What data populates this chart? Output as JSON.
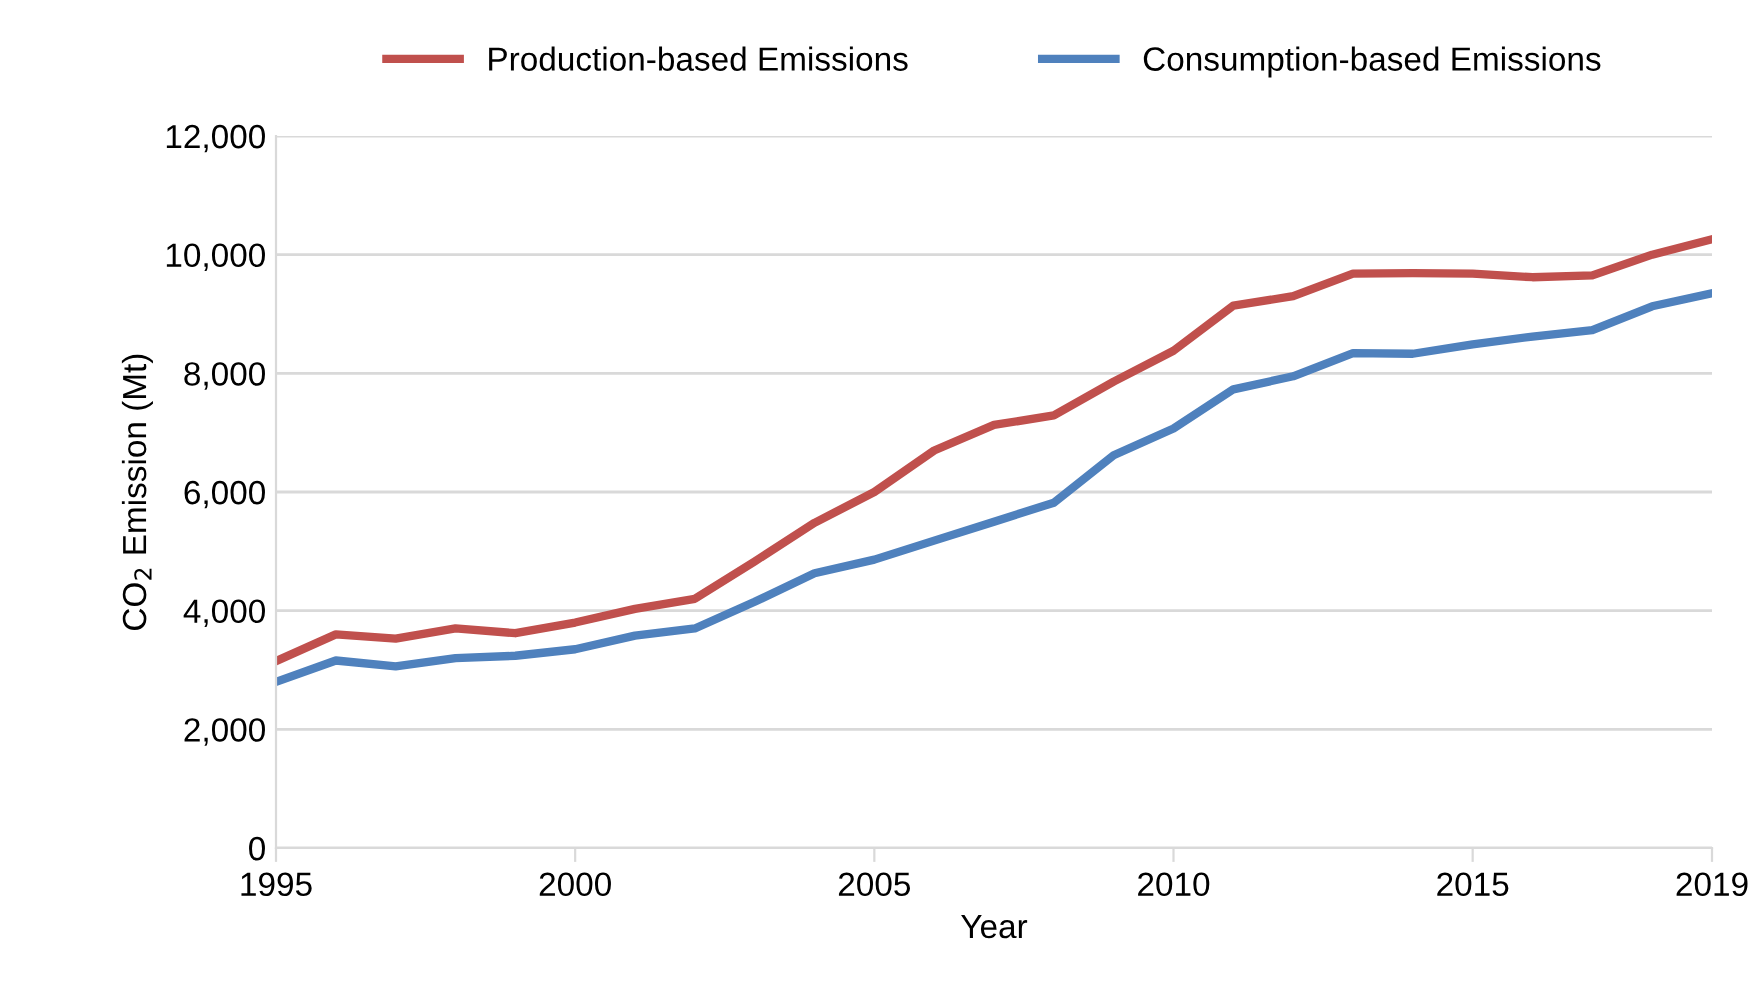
{
  "chart_data": {
    "type": "line",
    "xlabel": "Year",
    "ylabel": "CO$_{2}$ Emission (Mt)",
    "x": [
      1995,
      1996,
      1997,
      1998,
      1999,
      2000,
      2001,
      2002,
      2003,
      2004,
      2005,
      2006,
      2007,
      2008,
      2009,
      2010,
      2011,
      2012,
      2013,
      2014,
      2015,
      2016,
      2017,
      2018,
      2019
    ],
    "series": [
      {
        "name": "Production-based Emissions",
        "color": "#c0504d",
        "values": [
          3150,
          3600,
          3530,
          3700,
          3620,
          3800,
          4030,
          4200,
          4830,
          5480,
          6000,
          6700,
          7130,
          7290,
          7860,
          8380,
          9140,
          9300,
          9680,
          9690,
          9680,
          9620,
          9650,
          10000,
          10260
        ]
      },
      {
        "name": "Consumption-based Emissions",
        "color": "#4f81bd",
        "values": [
          2800,
          3160,
          3060,
          3200,
          3240,
          3350,
          3580,
          3700,
          4150,
          4630,
          4860,
          5180,
          5500,
          5820,
          6620,
          7070,
          7730,
          7950,
          8340,
          8330,
          8490,
          8620,
          8730,
          9130,
          9350
        ]
      }
    ],
    "xlim": [
      1995,
      2019
    ],
    "xticks": [
      1995,
      2000,
      2005,
      2010,
      2015,
      2019
    ],
    "ylim": [
      0,
      12000
    ],
    "yticks": [
      0,
      {
        "value": 2000,
        "label": "2,000"
      },
      {
        "value": 4000,
        "label": "4,000"
      },
      {
        "value": 6000,
        "label": "6,000"
      },
      {
        "value": 8000,
        "label": "8,000"
      },
      {
        "value": 10000,
        "label": "10,000"
      },
      {
        "value": 12000,
        "label": "12,000"
      }
    ],
    "grid": "y",
    "legend": "top",
    "marker": "none",
    "line_style": "solid"
  }
}
